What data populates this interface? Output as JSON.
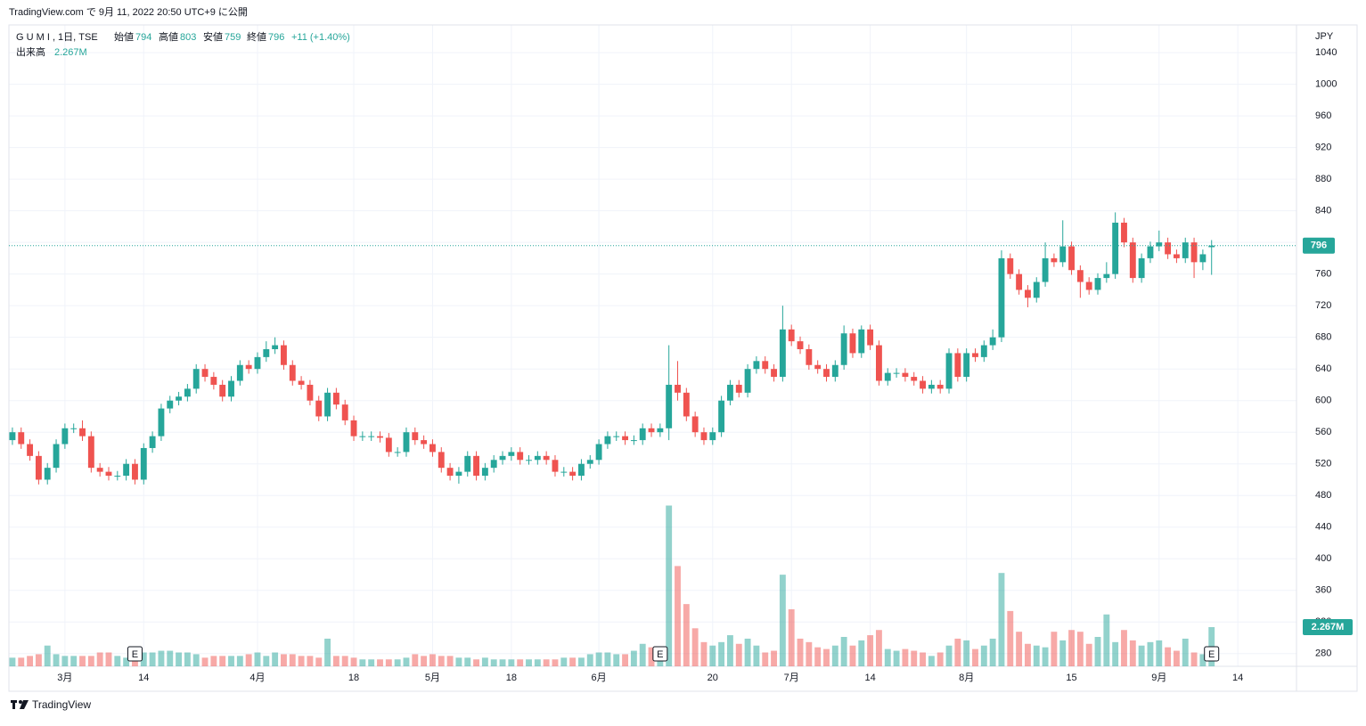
{
  "chart_data": {
    "type": "candlestick",
    "published": "TradingView.com で 9月 11, 2022 20:50 UTC+9 に公開",
    "symbol": "G U M I , 1日, TSE",
    "open_label": "始値",
    "high_label": "高値",
    "low_label": "安値",
    "close_label": "終値",
    "change": "+11 (+1.40%)",
    "volume_title": "出来高",
    "volume_label": "2.267M",
    "currency": "JPY",
    "footer": "TradingView",
    "up_color": "#26a69a",
    "down_color": "#ef5350",
    "ylim": [
      264,
      1075
    ],
    "yticks": [
      280,
      320,
      360,
      400,
      440,
      480,
      520,
      560,
      600,
      640,
      680,
      720,
      760,
      800,
      840,
      880,
      920,
      960,
      1000,
      1040
    ],
    "vlim": [
      0,
      37.1
    ],
    "xlim": [
      -0.4,
      146.7
    ],
    "xticks": [
      {
        "value": 6,
        "label": "3月"
      },
      {
        "value": 15,
        "label": "14"
      },
      {
        "value": 28,
        "label": "4月"
      },
      {
        "value": 39,
        "label": "18"
      },
      {
        "value": 48,
        "label": "5月"
      },
      {
        "value": 57,
        "label": "18"
      },
      {
        "value": 67,
        "label": "6月"
      },
      {
        "value": 80,
        "label": "20"
      },
      {
        "value": 89,
        "label": "7月"
      },
      {
        "value": 98,
        "label": "14"
      },
      {
        "value": 109,
        "label": "8月"
      },
      {
        "value": 121,
        "label": "15"
      },
      {
        "value": 131,
        "label": "9月"
      },
      {
        "value": 140,
        "label": "14"
      }
    ],
    "grid": true,
    "events": [
      {
        "x": 14,
        "label": "E"
      },
      {
        "x": 74,
        "label": "E"
      },
      {
        "x": 137,
        "label": "E"
      }
    ],
    "open": [
      550,
      560,
      545,
      530,
      500,
      515,
      545,
      565,
      565,
      555,
      515,
      510,
      505,
      505,
      520,
      500,
      540,
      555,
      590,
      600,
      605,
      615,
      640,
      630,
      620,
      605,
      625,
      645,
      640,
      655,
      665,
      670,
      645,
      625,
      620,
      600,
      580,
      610,
      595,
      575,
      555,
      555,
      555,
      553,
      535,
      535,
      560,
      550,
      545,
      535,
      515,
      505,
      510,
      530,
      505,
      515,
      525,
      530,
      535,
      525,
      525,
      530,
      525,
      510,
      510,
      505,
      520,
      525,
      545,
      555,
      555,
      550,
      550,
      565,
      560,
      565,
      620,
      610,
      580,
      560,
      550,
      560,
      600,
      620,
      610,
      640,
      650,
      640,
      630,
      690,
      675,
      665,
      645,
      640,
      630,
      645,
      685,
      660,
      690,
      670,
      625,
      635,
      635,
      630,
      625,
      615,
      620,
      615,
      660,
      630,
      660,
      655,
      670,
      680,
      780,
      760,
      740,
      730,
      750,
      780,
      775,
      795,
      765,
      750,
      740,
      755,
      760,
      825,
      800,
      755,
      780,
      795,
      800,
      785,
      780,
      800,
      775,
      794
    ],
    "high": [
      566,
      566,
      551,
      536,
      521,
      551,
      571,
      571,
      575,
      561,
      521,
      516,
      511,
      526,
      526,
      546,
      561,
      596,
      606,
      611,
      621,
      646,
      646,
      636,
      626,
      631,
      651,
      651,
      661,
      675,
      680,
      676,
      651,
      631,
      626,
      606,
      616,
      616,
      601,
      581,
      561,
      561,
      561,
      559,
      541,
      566,
      566,
      556,
      551,
      541,
      521,
      516,
      536,
      536,
      521,
      531,
      536,
      541,
      541,
      531,
      536,
      536,
      531,
      516,
      516,
      526,
      531,
      551,
      561,
      561,
      561,
      556,
      571,
      571,
      571,
      670,
      650,
      616,
      586,
      566,
      566,
      606,
      626,
      626,
      646,
      656,
      656,
      646,
      720,
      696,
      681,
      671,
      651,
      646,
      651,
      695,
      691,
      695,
      696,
      676,
      641,
      641,
      641,
      636,
      631,
      626,
      626,
      666,
      666,
      666,
      666,
      676,
      690,
      790,
      786,
      766,
      746,
      756,
      800,
      786,
      828,
      801,
      771,
      756,
      761,
      775,
      838,
      831,
      806,
      786,
      801,
      815,
      806,
      791,
      806,
      806,
      791,
      803
    ],
    "low": [
      544,
      539,
      524,
      494,
      494,
      509,
      539,
      559,
      549,
      509,
      504,
      499,
      499,
      499,
      494,
      494,
      534,
      549,
      584,
      594,
      599,
      609,
      624,
      614,
      599,
      599,
      619,
      634,
      634,
      649,
      659,
      639,
      619,
      614,
      594,
      574,
      574,
      589,
      569,
      549,
      549,
      549,
      547,
      529,
      529,
      529,
      544,
      539,
      529,
      509,
      499,
      495,
      504,
      499,
      499,
      509,
      519,
      524,
      519,
      519,
      519,
      519,
      504,
      504,
      499,
      499,
      514,
      519,
      539,
      549,
      544,
      544,
      544,
      554,
      554,
      550,
      600,
      574,
      554,
      544,
      544,
      554,
      594,
      604,
      604,
      634,
      634,
      624,
      624,
      669,
      659,
      639,
      634,
      624,
      624,
      639,
      654,
      654,
      664,
      619,
      619,
      629,
      624,
      619,
      609,
      609,
      609,
      609,
      624,
      624,
      649,
      649,
      664,
      674,
      754,
      734,
      718,
      724,
      744,
      769,
      769,
      759,
      730,
      734,
      734,
      749,
      754,
      794,
      749,
      749,
      774,
      789,
      779,
      774,
      774,
      755,
      765,
      759
    ],
    "close": [
      560,
      545,
      530,
      500,
      515,
      545,
      565,
      565,
      555,
      515,
      510,
      505,
      505,
      520,
      500,
      540,
      555,
      590,
      600,
      605,
      615,
      640,
      630,
      620,
      605,
      625,
      645,
      640,
      655,
      665,
      670,
      645,
      625,
      620,
      600,
      580,
      610,
      595,
      575,
      555,
      555,
      555,
      553,
      535,
      535,
      560,
      550,
      545,
      535,
      515,
      505,
      510,
      530,
      505,
      515,
      525,
      530,
      535,
      525,
      525,
      530,
      525,
      510,
      510,
      505,
      520,
      525,
      545,
      555,
      555,
      550,
      550,
      565,
      560,
      565,
      620,
      610,
      580,
      560,
      550,
      560,
      600,
      620,
      610,
      640,
      650,
      640,
      630,
      690,
      675,
      665,
      645,
      640,
      630,
      645,
      685,
      660,
      690,
      670,
      625,
      635,
      635,
      630,
      625,
      615,
      620,
      615,
      660,
      630,
      660,
      655,
      670,
      680,
      780,
      760,
      740,
      730,
      750,
      780,
      775,
      795,
      765,
      750,
      740,
      755,
      760,
      825,
      800,
      755,
      780,
      795,
      800,
      785,
      780,
      800,
      775,
      785,
      796
    ],
    "volume": [
      0.5,
      0.5,
      0.6,
      0.7,
      1.2,
      0.7,
      0.6,
      0.6,
      0.6,
      0.6,
      0.8,
      0.8,
      0.6,
      0.5,
      0.6,
      0.8,
      0.8,
      0.9,
      0.9,
      0.8,
      0.8,
      0.7,
      0.5,
      0.6,
      0.6,
      0.6,
      0.6,
      0.7,
      0.8,
      0.6,
      0.8,
      0.7,
      0.7,
      0.6,
      0.6,
      0.5,
      1.6,
      0.6,
      0.6,
      0.5,
      0.4,
      0.4,
      0.4,
      0.4,
      0.4,
      0.5,
      0.7,
      0.6,
      0.7,
      0.6,
      0.6,
      0.5,
      0.5,
      0.4,
      0.5,
      0.4,
      0.4,
      0.4,
      0.4,
      0.4,
      0.4,
      0.4,
      0.4,
      0.5,
      0.5,
      0.5,
      0.7,
      0.8,
      0.8,
      0.7,
      0.7,
      0.9,
      1.3,
      1.1,
      0.9,
      9.3,
      5.8,
      3.6,
      2.2,
      1.4,
      1.2,
      1.4,
      1.8,
      1.3,
      1.6,
      1.2,
      0.8,
      0.9,
      5.3,
      3.3,
      1.6,
      1.4,
      1.1,
      1.0,
      1.2,
      1.7,
      1.2,
      1.5,
      1.8,
      2.1,
      1.0,
      0.9,
      1.0,
      0.9,
      0.8,
      0.6,
      0.8,
      1.2,
      1.6,
      1.5,
      1.0,
      1.2,
      1.6,
      5.4,
      3.2,
      2.0,
      1.3,
      1.2,
      1.1,
      2.0,
      1.5,
      2.1,
      2.0,
      1.3,
      1.7,
      3.0,
      1.4,
      2.1,
      1.5,
      1.2,
      1.4,
      1.5,
      1.1,
      0.9,
      1.6,
      0.8,
      0.7,
      2.267
    ]
  }
}
